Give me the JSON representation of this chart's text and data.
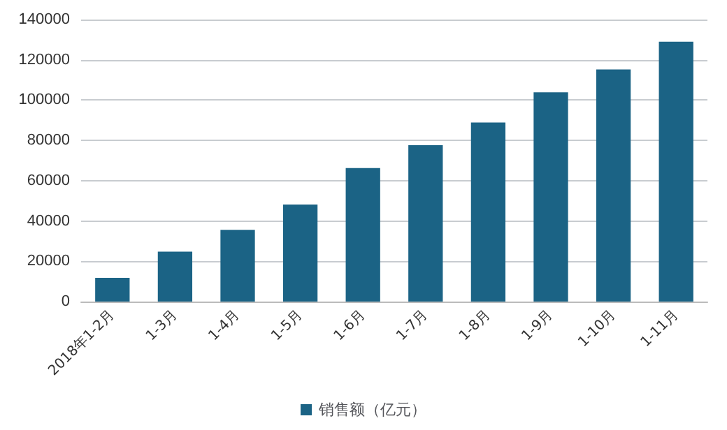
{
  "chart_data": {
    "type": "bar",
    "categories": [
      "2018年1-2月",
      "1-3月",
      "1-4月",
      "1-5月",
      "1-6月",
      "1-7月",
      "1-8月",
      "1-9月",
      "1-10月",
      "1-11月"
    ],
    "series": [
      {
        "name": "销售额（亿元）",
        "color": "#1b6385",
        "values": [
          11800,
          24800,
          35600,
          48200,
          66300,
          77600,
          88900,
          103900,
          115200,
          129000
        ]
      }
    ],
    "ylim": [
      0,
      140000
    ],
    "yticks": [
      0,
      20000,
      40000,
      60000,
      80000,
      100000,
      120000,
      140000
    ],
    "grid": "y",
    "legend": "bottom"
  }
}
